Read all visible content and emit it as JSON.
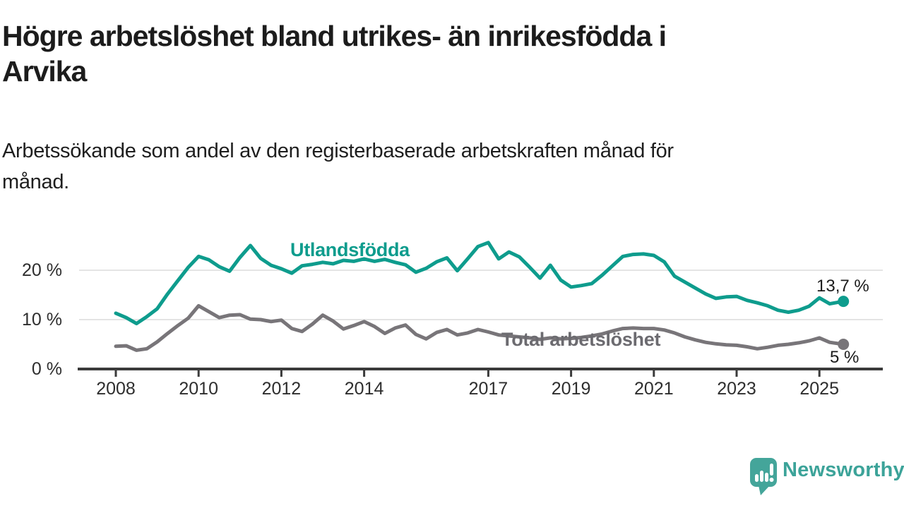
{
  "title": {
    "lines": [
      "Högre arbetslöshet bland utrikes- än inrikesfödda i",
      "Arvika"
    ]
  },
  "subtitle": {
    "lines": [
      "Arbetssökande som andel av den registerbaserade arbetskraften månad för",
      "månad."
    ]
  },
  "colors": {
    "foreign_born_line": "#0e9c8d",
    "total_line": "#787579",
    "total_label": "#6c6b70",
    "axis": "#3b3b3b",
    "gridline": "#e4e4e4",
    "logo_teal": "#44a59a"
  },
  "chart_data": {
    "type": "line",
    "title": "Högre arbetslöshet bland utrikes- än inrikesfödda i Arvika",
    "subtitle": "Arbetssökande som andel av den registerbaserade arbetskraften månad för månad.",
    "xlabel": "",
    "ylabel": "",
    "unit": "%",
    "grid": true,
    "legend_position": "inline-labels",
    "xlim": [
      2007.1,
      2026.5
    ],
    "ylim": [
      0,
      27.5
    ],
    "x_axis": {
      "ticks": [
        {
          "label": "2008",
          "year": 2008
        },
        {
          "label": "2010",
          "year": 2010
        },
        {
          "label": "2012",
          "year": 2012
        },
        {
          "label": "2014",
          "year": 2014
        },
        {
          "label": "2017",
          "year": 2017
        },
        {
          "label": "2019",
          "year": 2019
        },
        {
          "label": "2021",
          "year": 2021
        },
        {
          "label": "2023",
          "year": 2023
        },
        {
          "label": "2025",
          "year": 2025
        }
      ]
    },
    "y_axis": {
      "ticks": [
        {
          "label": "0 %",
          "value": 0
        },
        {
          "label": "10 %",
          "value": 10
        },
        {
          "label": "20 %",
          "value": 20
        }
      ]
    },
    "series": [
      {
        "name": "Utlandsfödda",
        "color": "#0e9c8d",
        "end_label": "13,7 %",
        "end_value": 13.7,
        "points": [
          [
            2008.0,
            11.3
          ],
          [
            2008.25,
            10.4
          ],
          [
            2008.5,
            9.2
          ],
          [
            2008.75,
            10.6
          ],
          [
            2009.0,
            12.2
          ],
          [
            2009.25,
            15.2
          ],
          [
            2009.5,
            17.9
          ],
          [
            2009.75,
            20.6
          ],
          [
            2010.0,
            22.8
          ],
          [
            2010.25,
            22.1
          ],
          [
            2010.5,
            20.7
          ],
          [
            2010.75,
            19.8
          ],
          [
            2011.0,
            22.6
          ],
          [
            2011.25,
            25.0
          ],
          [
            2011.5,
            22.4
          ],
          [
            2011.75,
            21.0
          ],
          [
            2012.0,
            20.3
          ],
          [
            2012.25,
            19.4
          ],
          [
            2012.5,
            20.9
          ],
          [
            2012.75,
            21.2
          ],
          [
            2013.0,
            21.6
          ],
          [
            2013.25,
            21.3
          ],
          [
            2013.5,
            22.0
          ],
          [
            2013.75,
            21.8
          ],
          [
            2014.0,
            22.3
          ],
          [
            2014.25,
            21.8
          ],
          [
            2014.5,
            22.2
          ],
          [
            2014.75,
            21.6
          ],
          [
            2015.0,
            21.1
          ],
          [
            2015.25,
            19.6
          ],
          [
            2015.5,
            20.4
          ],
          [
            2015.75,
            21.7
          ],
          [
            2016.0,
            22.5
          ],
          [
            2016.25,
            19.9
          ],
          [
            2016.5,
            22.3
          ],
          [
            2016.75,
            24.8
          ],
          [
            2017.0,
            25.6
          ],
          [
            2017.25,
            22.3
          ],
          [
            2017.5,
            23.7
          ],
          [
            2017.75,
            22.7
          ],
          [
            2018.0,
            20.6
          ],
          [
            2018.25,
            18.4
          ],
          [
            2018.5,
            21.0
          ],
          [
            2018.75,
            18.0
          ],
          [
            2019.0,
            16.6
          ],
          [
            2019.25,
            16.9
          ],
          [
            2019.5,
            17.3
          ],
          [
            2019.75,
            19.0
          ],
          [
            2020.0,
            20.9
          ],
          [
            2020.25,
            22.8
          ],
          [
            2020.5,
            23.2
          ],
          [
            2020.75,
            23.3
          ],
          [
            2021.0,
            23.0
          ],
          [
            2021.25,
            21.7
          ],
          [
            2021.5,
            18.8
          ],
          [
            2021.75,
            17.6
          ],
          [
            2022.0,
            16.4
          ],
          [
            2022.25,
            15.2
          ],
          [
            2022.5,
            14.3
          ],
          [
            2022.75,
            14.6
          ],
          [
            2023.0,
            14.7
          ],
          [
            2023.25,
            13.9
          ],
          [
            2023.5,
            13.4
          ],
          [
            2023.75,
            12.8
          ],
          [
            2024.0,
            11.9
          ],
          [
            2024.25,
            11.5
          ],
          [
            2024.5,
            11.9
          ],
          [
            2024.75,
            12.7
          ],
          [
            2025.0,
            14.4
          ],
          [
            2025.25,
            13.2
          ],
          [
            2025.58,
            13.7
          ]
        ]
      },
      {
        "name": "Total arbetslöshet",
        "color": "#787579",
        "end_label": "5 %",
        "end_value": 5,
        "points": [
          [
            2008.0,
            4.6
          ],
          [
            2008.25,
            4.7
          ],
          [
            2008.5,
            3.8
          ],
          [
            2008.75,
            4.1
          ],
          [
            2009.0,
            5.5
          ],
          [
            2009.25,
            7.2
          ],
          [
            2009.5,
            8.8
          ],
          [
            2009.75,
            10.3
          ],
          [
            2010.0,
            12.8
          ],
          [
            2010.25,
            11.6
          ],
          [
            2010.5,
            10.4
          ],
          [
            2010.75,
            10.9
          ],
          [
            2011.0,
            11.0
          ],
          [
            2011.25,
            10.1
          ],
          [
            2011.5,
            10.0
          ],
          [
            2011.75,
            9.6
          ],
          [
            2012.0,
            9.9
          ],
          [
            2012.25,
            8.2
          ],
          [
            2012.5,
            7.6
          ],
          [
            2012.75,
            9.1
          ],
          [
            2013.0,
            10.9
          ],
          [
            2013.25,
            9.7
          ],
          [
            2013.5,
            8.1
          ],
          [
            2013.75,
            8.8
          ],
          [
            2014.0,
            9.6
          ],
          [
            2014.25,
            8.6
          ],
          [
            2014.5,
            7.2
          ],
          [
            2014.75,
            8.3
          ],
          [
            2015.0,
            8.9
          ],
          [
            2015.25,
            7.0
          ],
          [
            2015.5,
            6.1
          ],
          [
            2015.75,
            7.4
          ],
          [
            2016.0,
            8.0
          ],
          [
            2016.25,
            6.9
          ],
          [
            2016.5,
            7.3
          ],
          [
            2016.75,
            8.0
          ],
          [
            2017.0,
            7.5
          ],
          [
            2017.25,
            6.9
          ],
          [
            2017.5,
            6.7
          ],
          [
            2017.75,
            6.5
          ],
          [
            2018.0,
            6.3
          ],
          [
            2018.25,
            6.0
          ],
          [
            2018.5,
            6.3
          ],
          [
            2018.75,
            6.1
          ],
          [
            2019.0,
            6.2
          ],
          [
            2019.25,
            6.4
          ],
          [
            2019.5,
            6.7
          ],
          [
            2019.75,
            7.1
          ],
          [
            2020.0,
            7.7
          ],
          [
            2020.25,
            8.2
          ],
          [
            2020.5,
            8.3
          ],
          [
            2020.75,
            8.2
          ],
          [
            2021.0,
            8.2
          ],
          [
            2021.25,
            7.9
          ],
          [
            2021.5,
            7.3
          ],
          [
            2021.75,
            6.5
          ],
          [
            2022.0,
            5.9
          ],
          [
            2022.25,
            5.4
          ],
          [
            2022.5,
            5.1
          ],
          [
            2022.75,
            4.9
          ],
          [
            2023.0,
            4.8
          ],
          [
            2023.25,
            4.5
          ],
          [
            2023.5,
            4.1
          ],
          [
            2023.75,
            4.4
          ],
          [
            2024.0,
            4.8
          ],
          [
            2024.25,
            5.0
          ],
          [
            2024.5,
            5.3
          ],
          [
            2024.75,
            5.7
          ],
          [
            2025.0,
            6.3
          ],
          [
            2025.25,
            5.4
          ],
          [
            2025.58,
            5.0
          ]
        ]
      }
    ]
  },
  "logo": {
    "text": "Newsworthy",
    "color": "#3ca399",
    "icon": "newsworthy-speech-bubble-chart-icon"
  }
}
